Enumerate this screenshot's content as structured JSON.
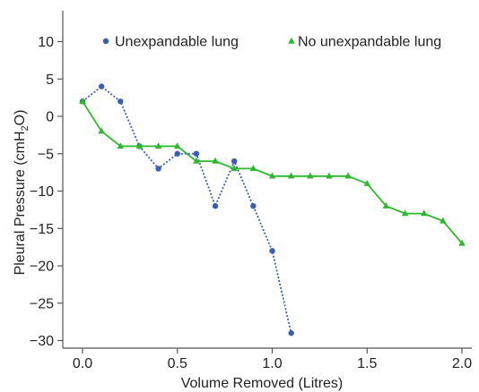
{
  "chart_data": {
    "type": "line",
    "xlabel": "Volume Removed (Litres)",
    "ylabel": {
      "main": "Pleural Pressure (cmH",
      "sub": "2",
      "end": "O)"
    },
    "xlim": [
      -0.1,
      2.05
    ],
    "ylim": [
      -30.5,
      14
    ],
    "x_ticks": [
      0.0,
      0.5,
      1.0,
      1.5,
      2.0
    ],
    "x_tick_labels": [
      "0.0",
      "0.5",
      "1.0",
      "1.5",
      "2.0"
    ],
    "y_ticks": [
      10,
      5,
      0,
      -5,
      -10,
      -15,
      -20,
      -25,
      -30
    ],
    "y_tick_labels": [
      "10",
      "5",
      "0",
      "−5",
      "−10",
      "−15",
      "−20",
      "−25",
      "−30"
    ],
    "grid": false,
    "legend_position": "top",
    "series": [
      {
        "name": "Unexpandable lung",
        "color": "#3a5fb0",
        "marker": "circle",
        "line_style": "dotted",
        "points": [
          [
            0.0,
            2
          ],
          [
            0.1,
            4
          ],
          [
            0.2,
            2
          ],
          [
            0.3,
            -4
          ],
          [
            0.4,
            -7
          ],
          [
            0.5,
            -5
          ],
          [
            0.6,
            -5
          ],
          [
            0.7,
            -12
          ],
          [
            0.8,
            -6
          ],
          [
            0.9,
            -12
          ],
          [
            1.0,
            -18
          ],
          [
            1.1,
            -29
          ]
        ]
      },
      {
        "name": "No unexpandable lung",
        "color": "#2db82d",
        "marker": "triangle",
        "line_style": "solid",
        "points": [
          [
            0.0,
            2
          ],
          [
            0.1,
            -2
          ],
          [
            0.2,
            -4
          ],
          [
            0.3,
            -4
          ],
          [
            0.4,
            -4
          ],
          [
            0.5,
            -4
          ],
          [
            0.6,
            -6
          ],
          [
            0.7,
            -6
          ],
          [
            0.8,
            -7
          ],
          [
            0.9,
            -7
          ],
          [
            1.0,
            -8
          ],
          [
            1.1,
            -8
          ],
          [
            1.2,
            -8
          ],
          [
            1.3,
            -8
          ],
          [
            1.4,
            -8
          ],
          [
            1.5,
            -9
          ],
          [
            1.6,
            -12
          ],
          [
            1.7,
            -13
          ],
          [
            1.8,
            -13
          ],
          [
            1.9,
            -14
          ],
          [
            2.0,
            -17
          ]
        ]
      }
    ]
  }
}
